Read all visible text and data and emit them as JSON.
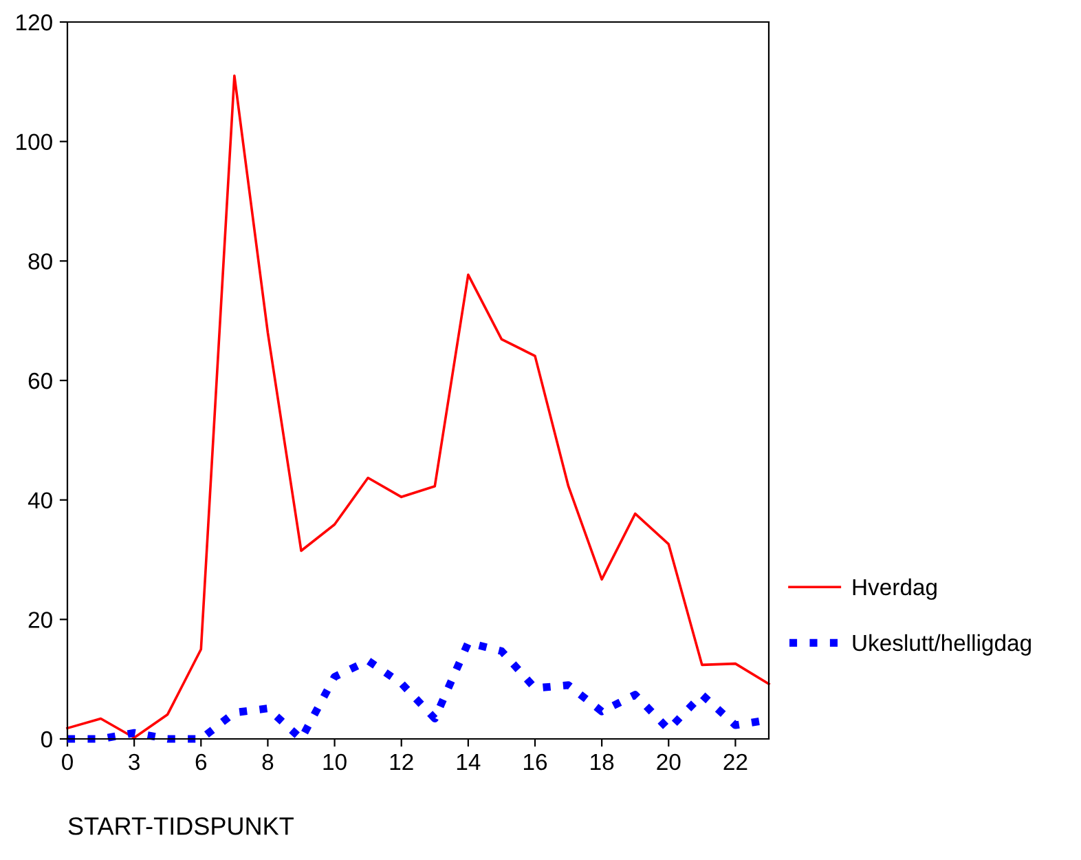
{
  "chart_data": {
    "type": "line",
    "xlabel": "START-TIDSPUNKT",
    "categories": [
      "0",
      null,
      "3",
      null,
      "6",
      null,
      "8",
      null,
      "10",
      null,
      "12",
      null,
      "14",
      null,
      "16",
      null,
      "18",
      null,
      "20",
      null,
      "22",
      null
    ],
    "series": [
      {
        "name": "Hverdag",
        "color": "#ff0000",
        "line_style": "solid",
        "values": [
          1.8,
          3.4,
          0.2,
          4.1,
          15.0,
          111,
          68,
          31.5,
          35.9,
          43.7,
          40.5,
          42.3,
          77.7,
          66.9,
          64.1,
          42.3,
          26.7,
          37.7,
          32.6,
          12.4,
          12.6,
          9.2
        ]
      },
      {
        "name": "Ukeslutt/helligdag",
        "color": "#0000ff",
        "line_style": "dotted",
        "values": [
          0,
          0,
          1,
          0,
          0,
          4.4,
          5.1,
          0,
          10.4,
          13.1,
          9.3,
          3.4,
          16.1,
          14.7,
          8.5,
          9.0,
          4.6,
          7.4,
          1.6,
          7.4,
          2.3,
          3.2
        ]
      }
    ],
    "ylim": [
      0,
      120
    ],
    "yticks": [
      0,
      20,
      40,
      60,
      80,
      100,
      120
    ],
    "grid": false,
    "legend": "right"
  }
}
